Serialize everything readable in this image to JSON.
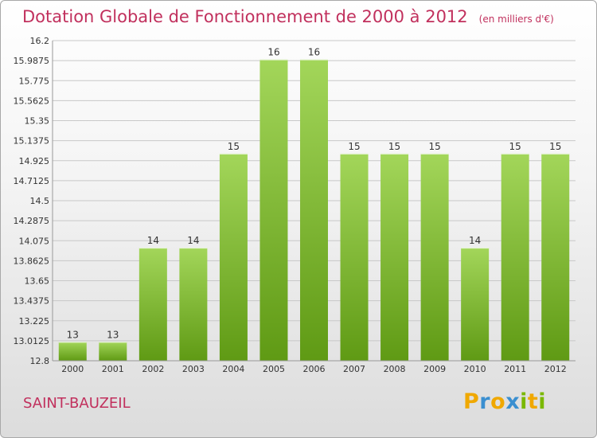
{
  "chart_data": {
    "type": "bar",
    "title": "Dotation Globale de Fonctionnement de 2000 à 2012",
    "unit_note": "(en milliers d'€)",
    "categories": [
      "2000",
      "2001",
      "2002",
      "2003",
      "2004",
      "2005",
      "2006",
      "2007",
      "2008",
      "2009",
      "2010",
      "2011",
      "2012"
    ],
    "values": [
      13,
      13,
      14,
      14,
      15,
      16,
      16,
      15,
      15,
      15,
      14,
      15,
      15
    ],
    "value_labels": [
      "13",
      "13",
      "14",
      "14",
      "15",
      "16",
      "16",
      "15",
      "15",
      "15",
      "14",
      "15",
      "15"
    ],
    "y_ticks": [
      {
        "value": 12.8,
        "label": "12.8"
      },
      {
        "value": 13.0125,
        "label": "13.0125"
      },
      {
        "value": 13.225,
        "label": "13.225"
      },
      {
        "value": 13.4375,
        "label": "13.4375"
      },
      {
        "value": 13.65,
        "label": "13.65"
      },
      {
        "value": 13.8625,
        "label": "13.8625"
      },
      {
        "value": 14.075,
        "label": "14.075"
      },
      {
        "value": 14.2875,
        "label": "14.2875"
      },
      {
        "value": 14.5,
        "label": "14.5"
      },
      {
        "value": 14.7125,
        "label": "14.7125"
      },
      {
        "value": 14.925,
        "label": "14.925"
      },
      {
        "value": 15.1375,
        "label": "15.1375"
      },
      {
        "value": 15.35,
        "label": "15.35"
      },
      {
        "value": 15.5625,
        "label": "15.5625"
      },
      {
        "value": 15.775,
        "label": "15.775"
      },
      {
        "value": 15.9875,
        "label": "15.9875"
      },
      {
        "value": 16.2,
        "label": "16.2"
      }
    ],
    "ylim": [
      12.8,
      16.2
    ],
    "xlabel": "",
    "ylabel": "",
    "grid": true,
    "colors": {
      "bar_light": "#a3d65a",
      "bar_dark": "#5f9a14",
      "title": "#c1305d",
      "grid": "#c8c8c8",
      "axis_text": "#333333"
    }
  },
  "location": "SAINT-BAUZEIL",
  "logo": {
    "letters": [
      "P",
      "r",
      "o",
      "x",
      "i",
      "t",
      "i"
    ],
    "colors": [
      "#f0a800",
      "#3a8fd0",
      "#f0a800",
      "#3a8fd0",
      "#7ab800",
      "#f0a800",
      "#7ab800"
    ]
  }
}
